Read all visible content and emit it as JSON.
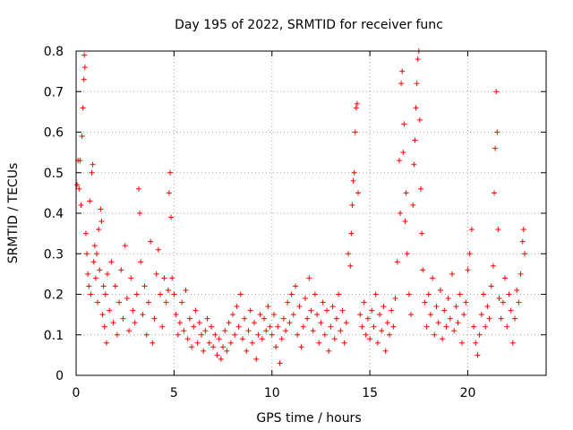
{
  "chart_data": {
    "type": "scatter",
    "title": "Day 195 of 2022, SRMTID for receiver func",
    "xlabel": "GPS time / hours",
    "ylabel": "SRMTID / TECUs",
    "xlim": [
      0,
      24
    ],
    "ylim": [
      0,
      0.8
    ],
    "xticks": [
      0,
      5,
      10,
      15,
      20
    ],
    "xtick_labels": [
      "0",
      "5",
      "10",
      "15",
      "20"
    ],
    "yticks": [
      0,
      0.1,
      0.2,
      0.3,
      0.4,
      0.5,
      0.6,
      0.7,
      0.8
    ],
    "ytick_labels": [
      "0",
      "0.1",
      "0.2",
      "0.3",
      "0.4",
      "0.5",
      "0.6",
      "0.7",
      "0.8"
    ],
    "grid": true,
    "marker": "plus",
    "color": "#ff0000",
    "series": [
      {
        "name": "SRMTID",
        "points": [
          [
            0.05,
            0.47
          ],
          [
            0.1,
            0.53
          ],
          [
            0.15,
            0.46
          ],
          [
            0.2,
            0.53
          ],
          [
            0.25,
            0.42
          ],
          [
            0.3,
            0.59
          ],
          [
            0.35,
            0.66
          ],
          [
            0.4,
            0.73
          ],
          [
            0.42,
            0.79
          ],
          [
            0.45,
            0.76
          ],
          [
            0.5,
            0.35
          ],
          [
            0.55,
            0.3
          ],
          [
            0.6,
            0.25
          ],
          [
            0.65,
            0.22
          ],
          [
            0.7,
            0.43
          ],
          [
            0.75,
            0.2
          ],
          [
            0.8,
            0.5
          ],
          [
            0.85,
            0.52
          ],
          [
            0.9,
            0.28
          ],
          [
            0.95,
            0.32
          ],
          [
            1.0,
            0.24
          ],
          [
            1.05,
            0.3
          ],
          [
            1.1,
            0.18
          ],
          [
            1.15,
            0.36
          ],
          [
            1.2,
            0.26
          ],
          [
            1.25,
            0.41
          ],
          [
            1.3,
            0.38
          ],
          [
            1.35,
            0.15
          ],
          [
            1.4,
            0.22
          ],
          [
            1.45,
            0.12
          ],
          [
            1.5,
            0.2
          ],
          [
            1.55,
            0.08
          ],
          [
            1.6,
            0.25
          ],
          [
            1.7,
            0.16
          ],
          [
            1.8,
            0.28
          ],
          [
            1.9,
            0.13
          ],
          [
            2.0,
            0.22
          ],
          [
            2.1,
            0.1
          ],
          [
            2.2,
            0.18
          ],
          [
            2.3,
            0.26
          ],
          [
            2.4,
            0.14
          ],
          [
            2.5,
            0.32
          ],
          [
            2.6,
            0.19
          ],
          [
            2.7,
            0.11
          ],
          [
            2.8,
            0.24
          ],
          [
            2.9,
            0.16
          ],
          [
            3.0,
            0.13
          ],
          [
            3.1,
            0.2
          ],
          [
            3.2,
            0.46
          ],
          [
            3.25,
            0.4
          ],
          [
            3.3,
            0.28
          ],
          [
            3.4,
            0.15
          ],
          [
            3.5,
            0.22
          ],
          [
            3.6,
            0.1
          ],
          [
            3.7,
            0.18
          ],
          [
            3.8,
            0.33
          ],
          [
            3.9,
            0.08
          ],
          [
            4.0,
            0.14
          ],
          [
            4.1,
            0.25
          ],
          [
            4.2,
            0.31
          ],
          [
            4.3,
            0.2
          ],
          [
            4.4,
            0.12
          ],
          [
            4.5,
            0.24
          ],
          [
            4.6,
            0.18
          ],
          [
            4.7,
            0.21
          ],
          [
            4.75,
            0.45
          ],
          [
            4.8,
            0.5
          ],
          [
            4.85,
            0.39
          ],
          [
            4.9,
            0.24
          ],
          [
            5.0,
            0.2
          ],
          [
            5.1,
            0.15
          ],
          [
            5.2,
            0.1
          ],
          [
            5.3,
            0.13
          ],
          [
            5.4,
            0.18
          ],
          [
            5.5,
            0.11
          ],
          [
            5.6,
            0.21
          ],
          [
            5.7,
            0.09
          ],
          [
            5.8,
            0.14
          ],
          [
            5.9,
            0.07
          ],
          [
            6.0,
            0.12
          ],
          [
            6.1,
            0.16
          ],
          [
            6.2,
            0.08
          ],
          [
            6.3,
            0.13
          ],
          [
            6.4,
            0.1
          ],
          [
            6.5,
            0.06
          ],
          [
            6.6,
            0.11
          ],
          [
            6.7,
            0.14
          ],
          [
            6.8,
            0.08
          ],
          [
            6.9,
            0.12
          ],
          [
            7.0,
            0.07
          ],
          [
            7.1,
            0.1
          ],
          [
            7.2,
            0.05
          ],
          [
            7.3,
            0.09
          ],
          [
            7.4,
            0.04
          ],
          [
            7.5,
            0.07
          ],
          [
            7.6,
            0.11
          ],
          [
            7.7,
            0.06
          ],
          [
            7.8,
            0.13
          ],
          [
            7.9,
            0.08
          ],
          [
            8.0,
            0.15
          ],
          [
            8.1,
            0.1
          ],
          [
            8.2,
            0.17
          ],
          [
            8.3,
            0.12
          ],
          [
            8.4,
            0.2
          ],
          [
            8.5,
            0.09
          ],
          [
            8.6,
            0.14
          ],
          [
            8.7,
            0.06
          ],
          [
            8.8,
            0.11
          ],
          [
            8.9,
            0.16
          ],
          [
            9.0,
            0.08
          ],
          [
            9.1,
            0.13
          ],
          [
            9.2,
            0.04
          ],
          [
            9.3,
            0.1
          ],
          [
            9.4,
            0.15
          ],
          [
            9.5,
            0.09
          ],
          [
            9.6,
            0.14
          ],
          [
            9.7,
            0.11
          ],
          [
            9.8,
            0.17
          ],
          [
            9.9,
            0.12
          ],
          [
            10.0,
            0.1
          ],
          [
            10.1,
            0.15
          ],
          [
            10.2,
            0.07
          ],
          [
            10.3,
            0.12
          ],
          [
            10.4,
            0.03
          ],
          [
            10.5,
            0.09
          ],
          [
            10.6,
            0.14
          ],
          [
            10.7,
            0.11
          ],
          [
            10.8,
            0.18
          ],
          [
            10.9,
            0.13
          ],
          [
            11.0,
            0.2
          ],
          [
            11.1,
            0.15
          ],
          [
            11.2,
            0.22
          ],
          [
            11.3,
            0.1
          ],
          [
            11.4,
            0.17
          ],
          [
            11.5,
            0.07
          ],
          [
            11.6,
            0.12
          ],
          [
            11.7,
            0.19
          ],
          [
            11.8,
            0.14
          ],
          [
            11.9,
            0.24
          ],
          [
            12.0,
            0.16
          ],
          [
            12.1,
            0.11
          ],
          [
            12.2,
            0.2
          ],
          [
            12.3,
            0.15
          ],
          [
            12.4,
            0.08
          ],
          [
            12.5,
            0.13
          ],
          [
            12.6,
            0.18
          ],
          [
            12.7,
            0.1
          ],
          [
            12.8,
            0.16
          ],
          [
            12.9,
            0.06
          ],
          [
            13.0,
            0.12
          ],
          [
            13.1,
            0.17
          ],
          [
            13.2,
            0.09
          ],
          [
            13.3,
            0.14
          ],
          [
            13.4,
            0.2
          ],
          [
            13.5,
            0.11
          ],
          [
            13.6,
            0.16
          ],
          [
            13.7,
            0.08
          ],
          [
            13.8,
            0.13
          ],
          [
            13.9,
            0.3
          ],
          [
            14.0,
            0.27
          ],
          [
            14.05,
            0.35
          ],
          [
            14.1,
            0.42
          ],
          [
            14.15,
            0.48
          ],
          [
            14.2,
            0.5
          ],
          [
            14.25,
            0.6
          ],
          [
            14.3,
            0.66
          ],
          [
            14.35,
            0.67
          ],
          [
            14.4,
            0.45
          ],
          [
            14.5,
            0.15
          ],
          [
            14.6,
            0.12
          ],
          [
            14.7,
            0.18
          ],
          [
            14.8,
            0.1
          ],
          [
            14.9,
            0.14
          ],
          [
            15.0,
            0.09
          ],
          [
            15.1,
            0.16
          ],
          [
            15.2,
            0.12
          ],
          [
            15.3,
            0.2
          ],
          [
            15.4,
            0.08
          ],
          [
            15.5,
            0.15
          ],
          [
            15.6,
            0.11
          ],
          [
            15.7,
            0.17
          ],
          [
            15.8,
            0.06
          ],
          [
            15.9,
            0.13
          ],
          [
            16.0,
            0.1
          ],
          [
            16.1,
            0.16
          ],
          [
            16.2,
            0.12
          ],
          [
            16.3,
            0.19
          ],
          [
            16.4,
            0.28
          ],
          [
            16.5,
            0.53
          ],
          [
            16.55,
            0.4
          ],
          [
            16.6,
            0.72
          ],
          [
            16.65,
            0.75
          ],
          [
            16.7,
            0.55
          ],
          [
            16.75,
            0.62
          ],
          [
            16.8,
            0.38
          ],
          [
            16.85,
            0.45
          ],
          [
            16.9,
            0.3
          ],
          [
            17.0,
            0.2
          ],
          [
            17.1,
            0.15
          ],
          [
            17.2,
            0.42
          ],
          [
            17.25,
            0.52
          ],
          [
            17.3,
            0.58
          ],
          [
            17.35,
            0.66
          ],
          [
            17.4,
            0.72
          ],
          [
            17.45,
            0.78
          ],
          [
            17.5,
            0.8
          ],
          [
            17.55,
            0.63
          ],
          [
            17.6,
            0.46
          ],
          [
            17.65,
            0.35
          ],
          [
            17.7,
            0.26
          ],
          [
            17.8,
            0.18
          ],
          [
            17.9,
            0.12
          ],
          [
            18.0,
            0.2
          ],
          [
            18.1,
            0.15
          ],
          [
            18.2,
            0.24
          ],
          [
            18.3,
            0.1
          ],
          [
            18.4,
            0.17
          ],
          [
            18.5,
            0.13
          ],
          [
            18.6,
            0.21
          ],
          [
            18.7,
            0.09
          ],
          [
            18.8,
            0.16
          ],
          [
            18.9,
            0.12
          ],
          [
            19.0,
            0.19
          ],
          [
            19.1,
            0.14
          ],
          [
            19.2,
            0.25
          ],
          [
            19.3,
            0.11
          ],
          [
            19.4,
            0.17
          ],
          [
            19.5,
            0.13
          ],
          [
            19.6,
            0.2
          ],
          [
            19.7,
            0.08
          ],
          [
            19.8,
            0.15
          ],
          [
            19.9,
            0.18
          ],
          [
            20.0,
            0.26
          ],
          [
            20.1,
            0.3
          ],
          [
            20.2,
            0.36
          ],
          [
            20.3,
            0.12
          ],
          [
            20.4,
            0.08
          ],
          [
            20.5,
            0.05
          ],
          [
            20.6,
            0.1
          ],
          [
            20.7,
            0.15
          ],
          [
            20.8,
            0.2
          ],
          [
            20.9,
            0.12
          ],
          [
            21.0,
            0.17
          ],
          [
            21.1,
            0.14
          ],
          [
            21.2,
            0.22
          ],
          [
            21.3,
            0.27
          ],
          [
            21.35,
            0.45
          ],
          [
            21.4,
            0.56
          ],
          [
            21.45,
            0.7
          ],
          [
            21.5,
            0.6
          ],
          [
            21.55,
            0.36
          ],
          [
            21.6,
            0.19
          ],
          [
            21.7,
            0.14
          ],
          [
            21.8,
            0.18
          ],
          [
            21.9,
            0.24
          ],
          [
            22.0,
            0.12
          ],
          [
            22.1,
            0.2
          ],
          [
            22.2,
            0.16
          ],
          [
            22.3,
            0.08
          ],
          [
            22.4,
            0.14
          ],
          [
            22.5,
            0.21
          ],
          [
            22.6,
            0.18
          ],
          [
            22.7,
            0.25
          ],
          [
            22.8,
            0.33
          ],
          [
            22.85,
            0.36
          ],
          [
            22.9,
            0.3
          ]
        ]
      }
    ]
  }
}
